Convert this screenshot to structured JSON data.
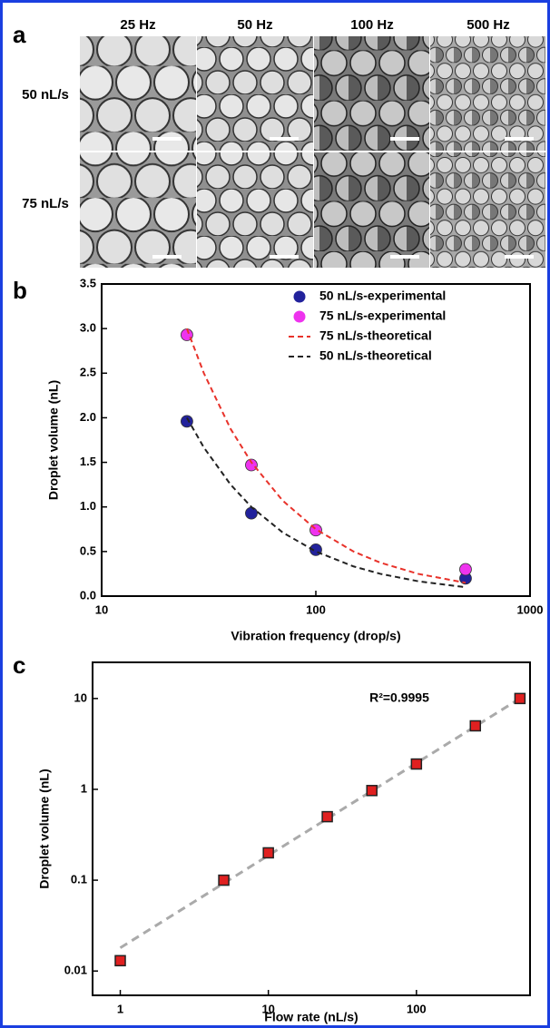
{
  "figure_a": {
    "label": "a",
    "columns": [
      "25 Hz",
      "50 Hz",
      "100 Hz",
      "500 Hz"
    ],
    "rows": [
      "50 nL/s",
      "75 nL/s"
    ]
  },
  "chart_data": [
    {
      "type": "scatter",
      "panel": "b",
      "xlabel": "Vibration frequency (drop/s)",
      "ylabel": "Droplet volume (nL)",
      "xscale": "log",
      "yscale": "linear",
      "xlim": [
        10,
        1000
      ],
      "xticks": [
        10,
        100,
        1000
      ],
      "ylim": [
        0,
        3.5
      ],
      "yticks": [
        {
          "value": 0,
          "label": "0.0"
        },
        0.5,
        {
          "value": 1,
          "label": "1.0"
        },
        1.5,
        {
          "value": 2,
          "label": "2.0"
        },
        2.5,
        {
          "value": 3,
          "label": "3.0"
        },
        3.5
      ],
      "legend": "upper right",
      "series": [
        {
          "name": "50 nL/s-experimental",
          "type": "scatter",
          "color": "#22229c",
          "x": [
            25,
            50,
            100,
            500
          ],
          "values": [
            1.96,
            0.93,
            0.52,
            0.2
          ]
        },
        {
          "name": "75 nL/s-experimental",
          "type": "scatter",
          "color": "#ee33ee",
          "x": [
            25,
            50,
            100,
            500
          ],
          "values": [
            2.93,
            1.47,
            0.74,
            0.3
          ]
        },
        {
          "name": "75 nL/s-theoretical",
          "type": "line",
          "color": "#e8322a",
          "x": [
            25,
            30,
            40,
            50,
            70,
            100,
            150,
            200,
            300,
            500
          ],
          "values": [
            3,
            2.5,
            1.875,
            1.5,
            1.071,
            0.75,
            0.5,
            0.375,
            0.25,
            0.15
          ]
        },
        {
          "name": "50 nL/s-theoretical",
          "type": "line",
          "color": "#222222",
          "x": [
            25,
            30,
            40,
            50,
            70,
            100,
            150,
            200,
            300,
            500
          ],
          "values": [
            2,
            1.667,
            1.25,
            1,
            0.714,
            0.5,
            0.333,
            0.25,
            0.167,
            0.1
          ]
        }
      ]
    },
    {
      "type": "scatter",
      "panel": "c",
      "xlabel": "Flow rate (nL/s)",
      "ylabel": "Droplet volume (nL)",
      "annotation": "R²=0.9995",
      "xscale": "log",
      "yscale": "log",
      "xlim": [
        0.65,
        585
      ],
      "xticks": [
        1,
        10,
        100
      ],
      "ylim": [
        0.0054,
        25
      ],
      "yticks": [
        0.01,
        0.1,
        1,
        10
      ],
      "series": [
        {
          "type": "line",
          "color": "#aaaaaa",
          "x": [
            1,
            500
          ],
          "values": [
            0.018,
            10
          ]
        },
        {
          "type": "square",
          "color": "#e02020",
          "x": [
            1,
            5,
            10,
            25,
            50,
            100,
            250,
            500
          ],
          "values": [
            0.013,
            0.1,
            0.2,
            0.5,
            0.97,
            1.9,
            5,
            10
          ]
        }
      ]
    }
  ]
}
